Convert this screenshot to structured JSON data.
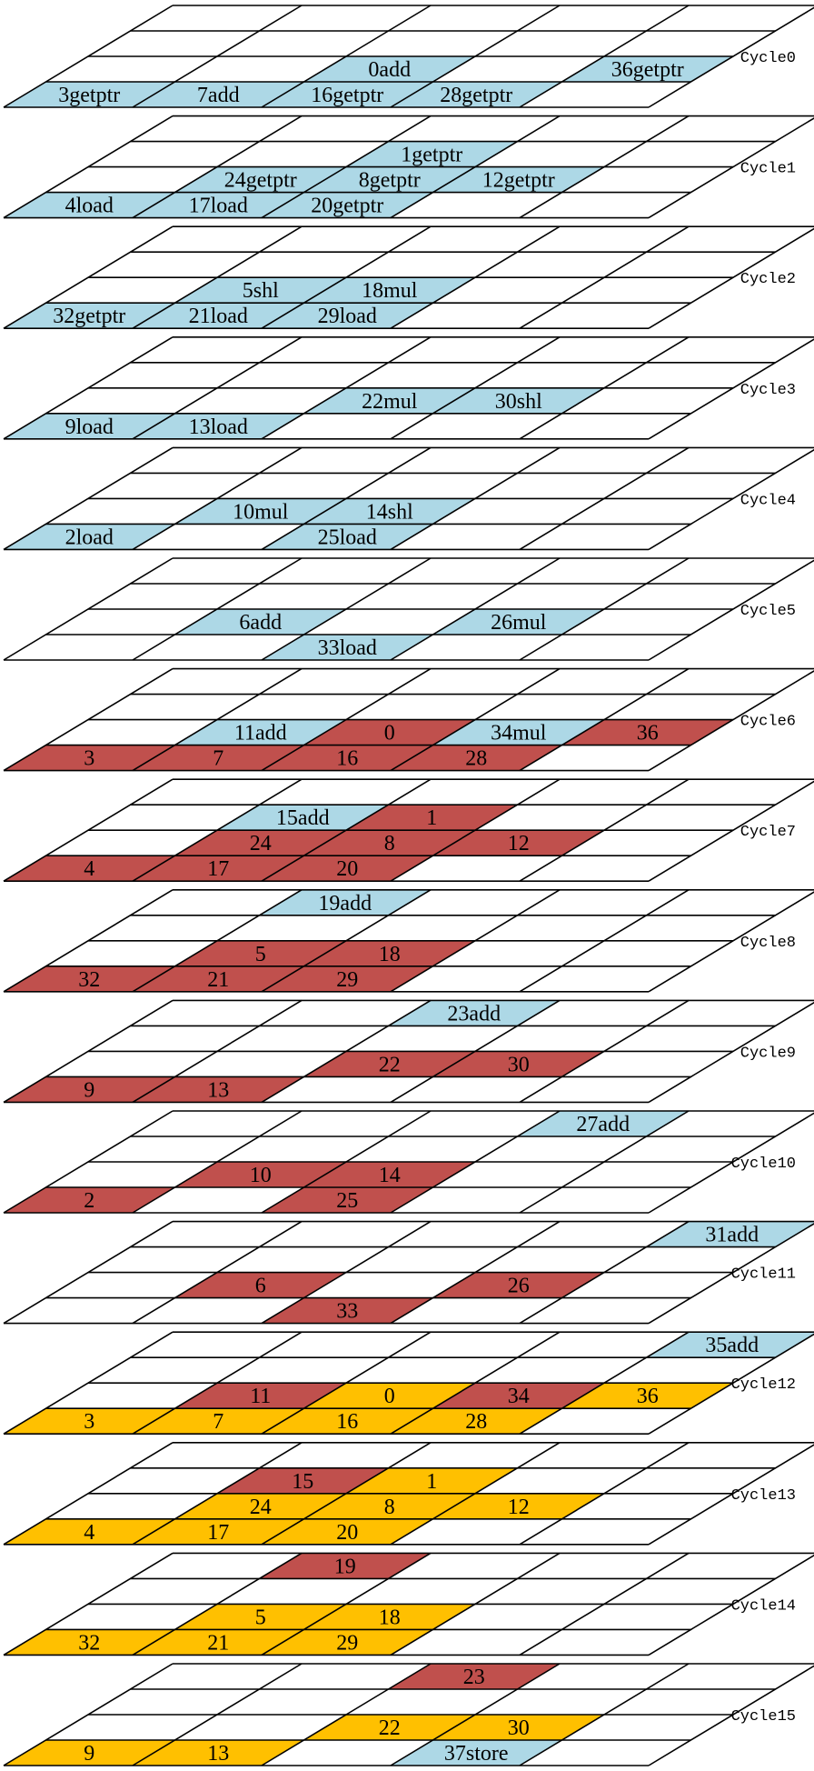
{
  "diagram": {
    "colors": {
      "cyan": "#add8e6",
      "red": "#c0504d",
      "gold": "#ffc000",
      "empty": "#ffffff",
      "stroke": "#000000"
    },
    "grid": {
      "rows": 4,
      "cols": 5
    },
    "cycles": [
      {
        "label": "Cycle0",
        "cells": [
          {
            "r": 1,
            "c": 2,
            "t": "0add",
            "color": "cyan"
          },
          {
            "r": 1,
            "c": 4,
            "t": "36getptr",
            "color": "cyan"
          },
          {
            "r": 0,
            "c": 0,
            "t": "3getptr",
            "color": "cyan"
          },
          {
            "r": 0,
            "c": 1,
            "t": "7add",
            "color": "cyan"
          },
          {
            "r": 0,
            "c": 2,
            "t": "16getptr",
            "color": "cyan"
          },
          {
            "r": 0,
            "c": 3,
            "t": "28getptr",
            "color": "cyan"
          }
        ]
      },
      {
        "label": "Cycle1",
        "cells": [
          {
            "r": 2,
            "c": 2,
            "t": "1getptr",
            "color": "cyan"
          },
          {
            "r": 1,
            "c": 1,
            "t": "24getptr",
            "color": "cyan"
          },
          {
            "r": 1,
            "c": 2,
            "t": "8getptr",
            "color": "cyan"
          },
          {
            "r": 1,
            "c": 3,
            "t": "12getptr",
            "color": "cyan"
          },
          {
            "r": 0,
            "c": 0,
            "t": "4load",
            "color": "cyan"
          },
          {
            "r": 0,
            "c": 1,
            "t": "17load",
            "color": "cyan"
          },
          {
            "r": 0,
            "c": 2,
            "t": "20getptr",
            "color": "cyan"
          }
        ]
      },
      {
        "label": "Cycle2",
        "cells": [
          {
            "r": 1,
            "c": 1,
            "t": "5shl",
            "color": "cyan"
          },
          {
            "r": 1,
            "c": 2,
            "t": "18mul",
            "color": "cyan"
          },
          {
            "r": 0,
            "c": 0,
            "t": "32getptr",
            "color": "cyan"
          },
          {
            "r": 0,
            "c": 1,
            "t": "21load",
            "color": "cyan"
          },
          {
            "r": 0,
            "c": 2,
            "t": "29load",
            "color": "cyan"
          }
        ]
      },
      {
        "label": "Cycle3",
        "cells": [
          {
            "r": 1,
            "c": 2,
            "t": "22mul",
            "color": "cyan"
          },
          {
            "r": 1,
            "c": 3,
            "t": "30shl",
            "color": "cyan"
          },
          {
            "r": 0,
            "c": 0,
            "t": "9load",
            "color": "cyan"
          },
          {
            "r": 0,
            "c": 1,
            "t": "13load",
            "color": "cyan"
          }
        ]
      },
      {
        "label": "Cycle4",
        "cells": [
          {
            "r": 1,
            "c": 1,
            "t": "10mul",
            "color": "cyan"
          },
          {
            "r": 1,
            "c": 2,
            "t": "14shl",
            "color": "cyan"
          },
          {
            "r": 0,
            "c": 0,
            "t": "2load",
            "color": "cyan"
          },
          {
            "r": 0,
            "c": 2,
            "t": "25load",
            "color": "cyan"
          }
        ]
      },
      {
        "label": "Cycle5",
        "cells": [
          {
            "r": 1,
            "c": 1,
            "t": "6add",
            "color": "cyan"
          },
          {
            "r": 1,
            "c": 3,
            "t": "26mul",
            "color": "cyan"
          },
          {
            "r": 0,
            "c": 2,
            "t": "33load",
            "color": "cyan"
          }
        ]
      },
      {
        "label": "Cycle6",
        "cells": [
          {
            "r": 1,
            "c": 1,
            "t": "11add",
            "color": "cyan"
          },
          {
            "r": 1,
            "c": 2,
            "t": "0",
            "color": "red"
          },
          {
            "r": 1,
            "c": 3,
            "t": "34mul",
            "color": "cyan"
          },
          {
            "r": 1,
            "c": 4,
            "t": "36",
            "color": "red"
          },
          {
            "r": 0,
            "c": 0,
            "t": "3",
            "color": "red"
          },
          {
            "r": 0,
            "c": 1,
            "t": "7",
            "color": "red"
          },
          {
            "r": 0,
            "c": 2,
            "t": "16",
            "color": "red"
          },
          {
            "r": 0,
            "c": 3,
            "t": "28",
            "color": "red"
          }
        ]
      },
      {
        "label": "Cycle7",
        "cells": [
          {
            "r": 2,
            "c": 1,
            "t": "15add",
            "color": "cyan"
          },
          {
            "r": 2,
            "c": 2,
            "t": "1",
            "color": "red"
          },
          {
            "r": 1,
            "c": 1,
            "t": "24",
            "color": "red"
          },
          {
            "r": 1,
            "c": 2,
            "t": "8",
            "color": "red"
          },
          {
            "r": 1,
            "c": 3,
            "t": "12",
            "color": "red"
          },
          {
            "r": 0,
            "c": 0,
            "t": "4",
            "color": "red"
          },
          {
            "r": 0,
            "c": 1,
            "t": "17",
            "color": "red"
          },
          {
            "r": 0,
            "c": 2,
            "t": "20",
            "color": "red"
          }
        ]
      },
      {
        "label": "Cycle8",
        "cells": [
          {
            "r": 3,
            "c": 1,
            "t": "19add",
            "color": "cyan"
          },
          {
            "r": 1,
            "c": 1,
            "t": "5",
            "color": "red"
          },
          {
            "r": 1,
            "c": 2,
            "t": "18",
            "color": "red"
          },
          {
            "r": 0,
            "c": 0,
            "t": "32",
            "color": "red"
          },
          {
            "r": 0,
            "c": 1,
            "t": "21",
            "color": "red"
          },
          {
            "r": 0,
            "c": 2,
            "t": "29",
            "color": "red"
          }
        ]
      },
      {
        "label": "Cycle9",
        "cells": [
          {
            "r": 3,
            "c": 2,
            "t": "23add",
            "color": "cyan"
          },
          {
            "r": 1,
            "c": 2,
            "t": "22",
            "color": "red"
          },
          {
            "r": 1,
            "c": 3,
            "t": "30",
            "color": "red"
          },
          {
            "r": 0,
            "c": 0,
            "t": "9",
            "color": "red"
          },
          {
            "r": 0,
            "c": 1,
            "t": "13",
            "color": "red"
          }
        ]
      },
      {
        "label": "Cycle10",
        "cells": [
          {
            "r": 3,
            "c": 3,
            "t": "27add",
            "color": "cyan"
          },
          {
            "r": 1,
            "c": 1,
            "t": "10",
            "color": "red"
          },
          {
            "r": 1,
            "c": 2,
            "t": "14",
            "color": "red"
          },
          {
            "r": 0,
            "c": 0,
            "t": "2",
            "color": "red"
          },
          {
            "r": 0,
            "c": 2,
            "t": "25",
            "color": "red"
          }
        ]
      },
      {
        "label": "Cycle11",
        "cells": [
          {
            "r": 3,
            "c": 4,
            "t": "31add",
            "color": "cyan"
          },
          {
            "r": 1,
            "c": 1,
            "t": "6",
            "color": "red"
          },
          {
            "r": 1,
            "c": 3,
            "t": "26",
            "color": "red"
          },
          {
            "r": 0,
            "c": 2,
            "t": "33",
            "color": "red"
          }
        ]
      },
      {
        "label": "Cycle12",
        "cells": [
          {
            "r": 3,
            "c": 4,
            "t": "35add",
            "color": "cyan"
          },
          {
            "r": 1,
            "c": 1,
            "t": "11",
            "color": "red"
          },
          {
            "r": 1,
            "c": 2,
            "t": "0",
            "color": "gold"
          },
          {
            "r": 1,
            "c": 3,
            "t": "34",
            "color": "red"
          },
          {
            "r": 1,
            "c": 4,
            "t": "36",
            "color": "gold"
          },
          {
            "r": 0,
            "c": 0,
            "t": "3",
            "color": "gold"
          },
          {
            "r": 0,
            "c": 1,
            "t": "7",
            "color": "gold"
          },
          {
            "r": 0,
            "c": 2,
            "t": "16",
            "color": "gold"
          },
          {
            "r": 0,
            "c": 3,
            "t": "28",
            "color": "gold"
          }
        ]
      },
      {
        "label": "Cycle13",
        "cells": [
          {
            "r": 2,
            "c": 1,
            "t": "15",
            "color": "red"
          },
          {
            "r": 2,
            "c": 2,
            "t": "1",
            "color": "gold"
          },
          {
            "r": 1,
            "c": 1,
            "t": "24",
            "color": "gold"
          },
          {
            "r": 1,
            "c": 2,
            "t": "8",
            "color": "gold"
          },
          {
            "r": 1,
            "c": 3,
            "t": "12",
            "color": "gold"
          },
          {
            "r": 0,
            "c": 0,
            "t": "4",
            "color": "gold"
          },
          {
            "r": 0,
            "c": 1,
            "t": "17",
            "color": "gold"
          },
          {
            "r": 0,
            "c": 2,
            "t": "20",
            "color": "gold"
          }
        ]
      },
      {
        "label": "Cycle14",
        "cells": [
          {
            "r": 3,
            "c": 1,
            "t": "19",
            "color": "red"
          },
          {
            "r": 1,
            "c": 1,
            "t": "5",
            "color": "gold"
          },
          {
            "r": 1,
            "c": 2,
            "t": "18",
            "color": "gold"
          },
          {
            "r": 0,
            "c": 0,
            "t": "32",
            "color": "gold"
          },
          {
            "r": 0,
            "c": 1,
            "t": "21",
            "color": "gold"
          },
          {
            "r": 0,
            "c": 2,
            "t": "29",
            "color": "gold"
          }
        ]
      },
      {
        "label": "Cycle15",
        "cells": [
          {
            "r": 3,
            "c": 2,
            "t": "23",
            "color": "red"
          },
          {
            "r": 1,
            "c": 2,
            "t": "22",
            "color": "gold"
          },
          {
            "r": 1,
            "c": 3,
            "t": "30",
            "color": "gold"
          },
          {
            "r": 0,
            "c": 0,
            "t": "9",
            "color": "gold"
          },
          {
            "r": 0,
            "c": 1,
            "t": "13",
            "color": "gold"
          },
          {
            "r": 0,
            "c": 3,
            "t": "37store",
            "color": "cyan"
          }
        ]
      }
    ]
  }
}
